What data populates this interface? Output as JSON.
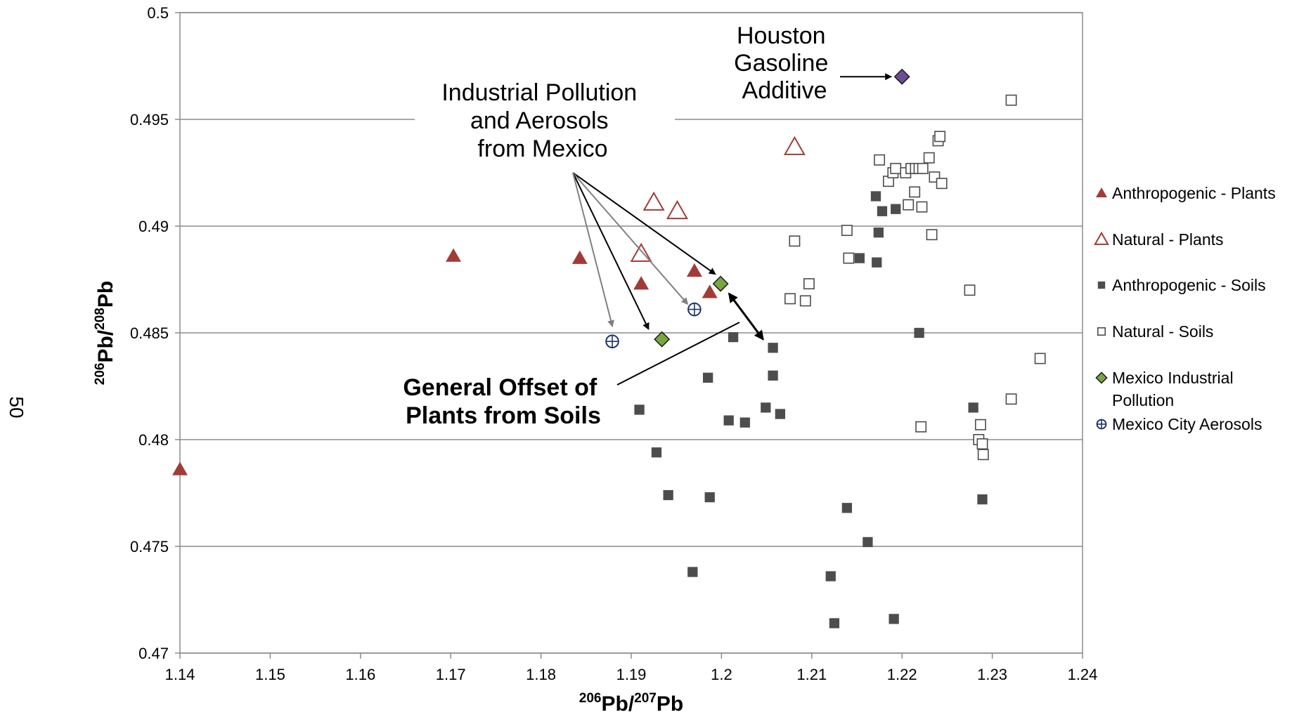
{
  "page_number": "50",
  "chart_data": {
    "type": "scatter",
    "title": "",
    "xlabel": {
      "sup1": "206",
      "base1": "Pb/",
      "sup2": "207",
      "base2": "Pb"
    },
    "ylabel": {
      "sup1": "206",
      "base1": "Pb/",
      "sup2": "208",
      "base2": "Pb"
    },
    "xlim": [
      1.14,
      1.24
    ],
    "ylim": [
      0.47,
      0.5
    ],
    "xticks": [
      "1.14",
      "1.15",
      "1.16",
      "1.17",
      "1.18",
      "1.19",
      "1.2",
      "1.21",
      "1.22",
      "1.23",
      "1.24"
    ],
    "yticks": [
      "0.47",
      "0.475",
      "0.48",
      "0.485",
      "0.49",
      "0.495",
      "0.5"
    ],
    "grid": "horizontal",
    "legend_position": "right",
    "series": [
      {
        "name": "Anthropogenic - Plants",
        "marker": "triangle-filled",
        "color": "#A23B37",
        "points": [
          [
            1.14,
            0.4786
          ],
          [
            1.1703,
            0.4886
          ],
          [
            1.1843,
            0.4885
          ],
          [
            1.1911,
            0.4873
          ],
          [
            1.197,
            0.4879
          ],
          [
            1.1987,
            0.4869
          ]
        ]
      },
      {
        "name": "Natural - Plants",
        "marker": "triangle-open",
        "color": "#A23B37",
        "points": [
          [
            1.1911,
            0.4887
          ],
          [
            1.1925,
            0.4911
          ],
          [
            1.1951,
            0.4907
          ],
          [
            1.2081,
            0.4937
          ]
        ]
      },
      {
        "name": "Anthropogenic - Soils",
        "marker": "square-filled",
        "color": "#4D4D4D",
        "points": [
          [
            1.1909,
            0.4814
          ],
          [
            1.1928,
            0.4794
          ],
          [
            1.1941,
            0.4774
          ],
          [
            1.1968,
            0.4738
          ],
          [
            1.1985,
            0.4829
          ],
          [
            1.1987,
            0.4773
          ],
          [
            1.2008,
            0.4809
          ],
          [
            1.2013,
            0.4848
          ],
          [
            1.2026,
            0.4808
          ],
          [
            1.2049,
            0.4815
          ],
          [
            1.2057,
            0.4843
          ],
          [
            1.2057,
            0.483
          ],
          [
            1.2065,
            0.4812
          ],
          [
            1.2121,
            0.4736
          ],
          [
            1.2125,
            0.4714
          ],
          [
            1.2139,
            0.4768
          ],
          [
            1.2153,
            0.4885
          ],
          [
            1.2162,
            0.4752
          ],
          [
            1.2171,
            0.4914
          ],
          [
            1.2172,
            0.4883
          ],
          [
            1.2174,
            0.4897
          ],
          [
            1.2178,
            0.4907
          ],
          [
            1.2191,
            0.4716
          ],
          [
            1.2193,
            0.4908
          ],
          [
            1.2219,
            0.485
          ],
          [
            1.2279,
            0.4815
          ],
          [
            1.2289,
            0.4772
          ]
        ]
      },
      {
        "name": "Natural - Soils",
        "marker": "square-open",
        "color": "#4D4D4D",
        "points": [
          [
            1.2076,
            0.4866
          ],
          [
            1.2081,
            0.4893
          ],
          [
            1.2093,
            0.4865
          ],
          [
            1.2097,
            0.4873
          ],
          [
            1.2139,
            0.4898
          ],
          [
            1.2141,
            0.4885
          ],
          [
            1.2175,
            0.4931
          ],
          [
            1.2185,
            0.4921
          ],
          [
            1.219,
            0.4925
          ],
          [
            1.2193,
            0.4927
          ],
          [
            1.2204,
            0.4925
          ],
          [
            1.2207,
            0.491
          ],
          [
            1.221,
            0.4927
          ],
          [
            1.2214,
            0.4916
          ],
          [
            1.2215,
            0.4927
          ],
          [
            1.2219,
            0.4927
          ],
          [
            1.2221,
            0.4806
          ],
          [
            1.2222,
            0.4909
          ],
          [
            1.2223,
            0.4927
          ],
          [
            1.223,
            0.4932
          ],
          [
            1.2233,
            0.4896
          ],
          [
            1.2236,
            0.4923
          ],
          [
            1.224,
            0.494
          ],
          [
            1.2242,
            0.4942
          ],
          [
            1.2244,
            0.492
          ],
          [
            1.2275,
            0.487
          ],
          [
            1.2285,
            0.48
          ],
          [
            1.2287,
            0.4807
          ],
          [
            1.2289,
            0.4798
          ],
          [
            1.229,
            0.4793
          ],
          [
            1.2321,
            0.4959
          ],
          [
            1.2321,
            0.4819
          ],
          [
            1.2353,
            0.4838
          ]
        ]
      },
      {
        "name": "Mexico Industrial Pollution",
        "marker": "diamond-filled",
        "color": "#76A740",
        "points": [
          [
            1.1934,
            0.4847
          ],
          [
            1.1999,
            0.4873
          ]
        ]
      },
      {
        "name": "Mexico City Aerosols",
        "marker": "circle-cross",
        "color": "#1F3864",
        "points": [
          [
            1.1879,
            0.4846
          ],
          [
            1.197,
            0.4861
          ]
        ]
      },
      {
        "name": "Houston Gasoline Additive",
        "marker": "diamond-filled",
        "color": "#6C4E94",
        "in_legend": false,
        "points": [
          [
            1.22,
            0.497
          ]
        ]
      }
    ],
    "annotations": [
      {
        "key": "houston",
        "style": "normal",
        "lines": [
          "Houston",
          "Gasoline",
          "Additive"
        ]
      },
      {
        "key": "industrial",
        "style": "normal",
        "lines": [
          "Industrial Pollution",
          "and Aerosols",
          "from Mexico"
        ]
      },
      {
        "key": "offset",
        "style": "bold",
        "lines": [
          "General Offset of",
          "Plants from Soils"
        ]
      }
    ]
  }
}
